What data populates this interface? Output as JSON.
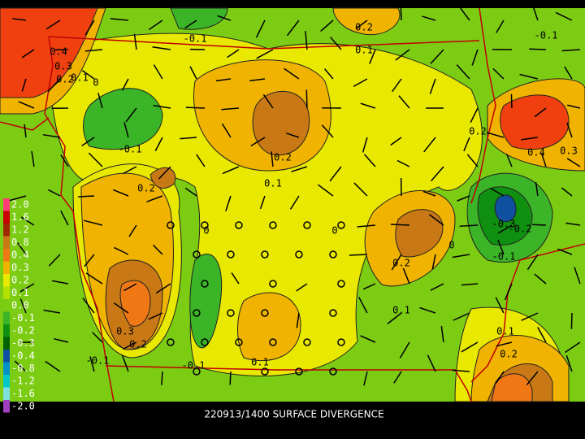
{
  "title": "220913/1400 SURFACE DIVERGENCE",
  "legend": {
    "labels": [
      "2.0",
      "1.6",
      "1.2",
      "0.8",
      "0.4",
      "0.3",
      "0.2",
      "0.1",
      "0.0",
      "-0.1",
      "-0.2",
      "-0.3",
      "-0.4",
      "-0.8",
      "-1.2",
      "-1.6",
      "-2.0"
    ]
  },
  "contour_labels": [
    "-0.1",
    "-0.1",
    "0.2",
    "0.1",
    "0.4",
    "0.3",
    "0.2",
    "0.1",
    "0",
    "0.2",
    "-0.1",
    "0.2",
    "0.2",
    "0.1",
    "0.4",
    "0.3",
    "0",
    "0",
    "-0.3",
    "-0.2",
    "0",
    "-0.1",
    "0.2",
    "0.1",
    "0.3",
    "0.2",
    "-0.1",
    "-0.1",
    "0.1",
    "0.1",
    "0.2"
  ]
}
